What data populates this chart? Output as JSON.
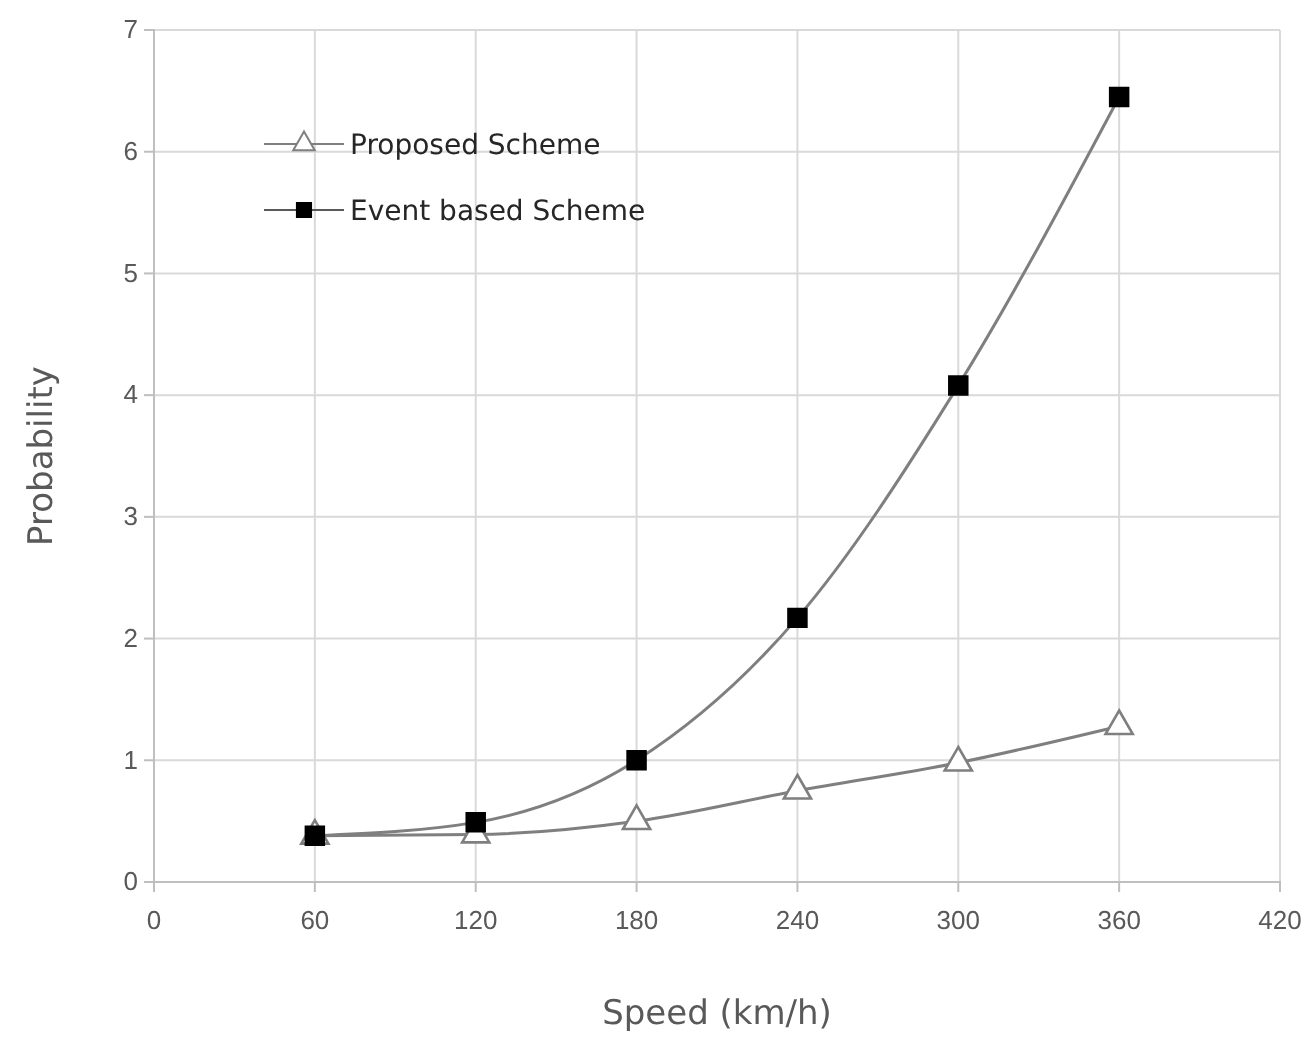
{
  "chart_data": {
    "type": "line",
    "xlabel": "Speed (km/h)",
    "ylabel": "Probability",
    "x": [
      60,
      120,
      180,
      240,
      300,
      360
    ],
    "xlim": [
      0,
      420
    ],
    "xticks": [
      0,
      60,
      120,
      180,
      240,
      300,
      360,
      420
    ],
    "ylim": [
      0,
      7
    ],
    "yticks": [
      0,
      1,
      2,
      3,
      4,
      5,
      6,
      7
    ],
    "grid": true,
    "legend": "top left",
    "series": [
      {
        "name": "Proposed Scheme",
        "color": "#7f7f7f",
        "marker": "triangle",
        "values": [
          0.38,
          0.39,
          0.5,
          0.75,
          0.98,
          1.28
        ]
      },
      {
        "name": "Event based Scheme",
        "color": "#000000",
        "marker": "square",
        "values": [
          0.38,
          0.49,
          1.0,
          2.17,
          4.08,
          6.45
        ]
      }
    ]
  }
}
